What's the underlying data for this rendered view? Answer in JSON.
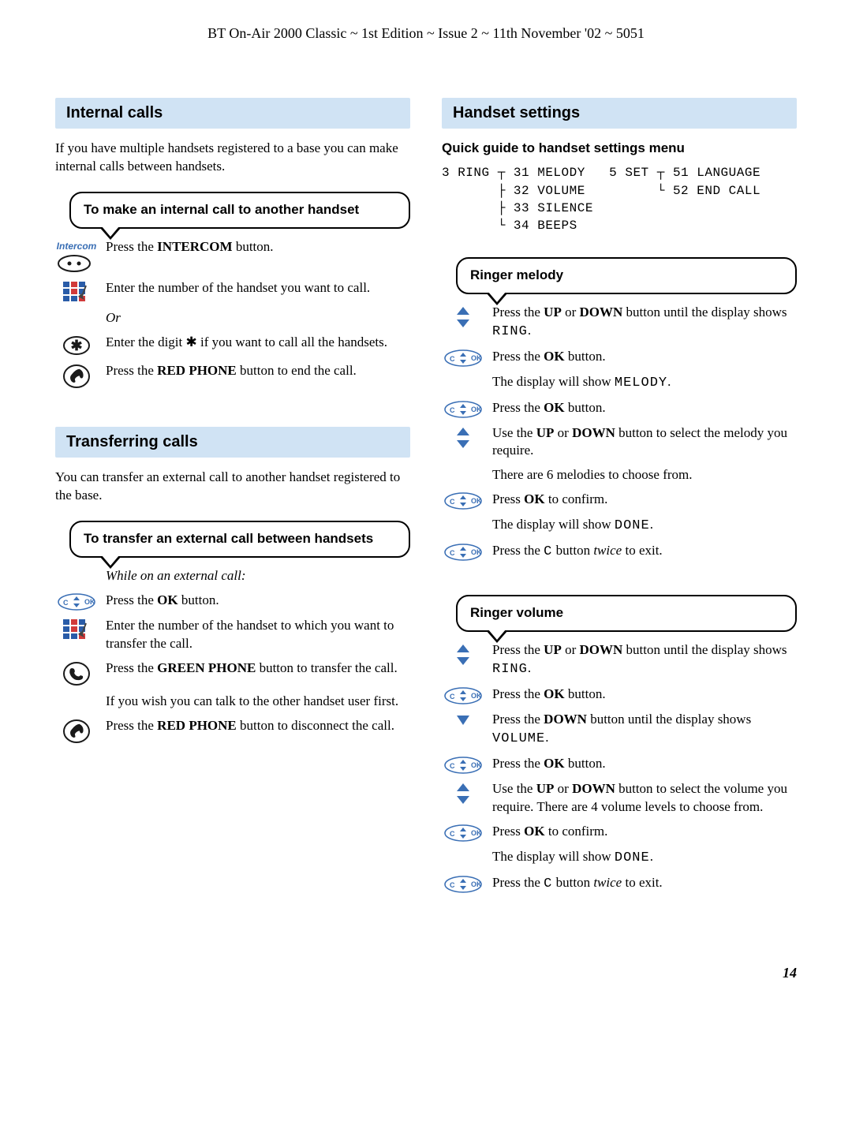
{
  "header": "BT On-Air 2000 Classic ~ 1st Edition ~ Issue 2 ~ 11th November '02 ~ 5051",
  "page_number": "14",
  "colors": {
    "section_bg": "#d0e3f4",
    "icon_blue": "#3a6fb5",
    "icon_dark": "#1a1a1a",
    "icon_green": "#2a8a3a",
    "keypad_a": "#2a5ca8",
    "keypad_b": "#d13a3a"
  },
  "left": {
    "internal_calls": {
      "title": "Internal calls",
      "intro": "If you have multiple handsets registered to a base you can make internal calls between handsets.",
      "box_title": "To make an internal call to another handset",
      "intercom_label": "Intercom",
      "steps": [
        {
          "icon": "intercom",
          "html": "Press the <b>INTERCOM</b> button."
        },
        {
          "icon": "keypad",
          "html": "Enter the number of the handset you want to call."
        },
        {
          "icon": "",
          "html": "<i>Or</i>"
        },
        {
          "icon": "star",
          "html": "Enter the digit ✱ if you want to call all the handsets."
        },
        {
          "icon": "redphone",
          "html": "Press the <b>RED PHONE</b> button to end the call."
        }
      ]
    },
    "transferring": {
      "title": "Transferring calls",
      "intro": "You can transfer an external call to another handset registered to the base.",
      "box_title": "To transfer an external call between handsets",
      "steps": [
        {
          "icon": "",
          "html": "<i>While on an external call:</i>"
        },
        {
          "icon": "ok",
          "html": "Press the <b>OK</b> button."
        },
        {
          "icon": "keypad",
          "html": "Enter the number of the handset to which you want to transfer the call."
        },
        {
          "icon": "greenphone",
          "html": "Press the <b>GREEN PHONE</b> button to transfer the call."
        },
        {
          "icon": "",
          "html": "If you wish you can talk to the other handset user first."
        },
        {
          "icon": "redphone",
          "html": "Press the <b>RED PHONE</b> button to disconnect the call."
        }
      ]
    }
  },
  "right": {
    "handset": {
      "title": "Handset settings",
      "quick_guide_title": "Quick guide to handset settings menu",
      "menu_tree": "3 RING ┬ 31 MELODY   5 SET ┬ 51 LANGUAGE\n       ├ 32 VOLUME         └ 52 END CALL\n       ├ 33 SILENCE\n       └ 34 BEEPS"
    },
    "ringer_melody": {
      "box_title": "Ringer melody",
      "steps": [
        {
          "icon": "updown",
          "html": "Press the <b>UP</b> or <b>DOWN</b> button until the display shows <span class=\"mono\">RING</span>."
        },
        {
          "icon": "ok",
          "html": "Press the <b>OK</b> button."
        },
        {
          "icon": "",
          "html": "The display will show <span class=\"mono\">MELODY</span>."
        },
        {
          "icon": "ok",
          "html": "Press the <b>OK</b> button."
        },
        {
          "icon": "updown",
          "html": "Use the <b>UP</b> or <b>DOWN</b> button to select the melody you require."
        },
        {
          "icon": "",
          "html": "There are 6 melodies to choose from."
        },
        {
          "icon": "ok",
          "html": "Press <b>OK</b> to confirm."
        },
        {
          "icon": "",
          "html": "The display will show <span class=\"mono\">DONE</span>."
        },
        {
          "icon": "ok",
          "html": "Press the <span class=\"mono\">C</span> button <i>twice</i> to exit."
        }
      ]
    },
    "ringer_volume": {
      "box_title": "Ringer volume",
      "steps": [
        {
          "icon": "updown",
          "html": "Press the <b>UP</b> or <b>DOWN</b> button until the display shows <span class=\"mono\">RING</span>."
        },
        {
          "icon": "ok",
          "html": "Press the <b>OK</b> button."
        },
        {
          "icon": "down",
          "html": "Press the <b>DOWN</b> button until the display shows <span class=\"mono\">VOLUME</span>."
        },
        {
          "icon": "ok",
          "html": "Press the <b>OK</b> button."
        },
        {
          "icon": "updown",
          "html": "Use the <b>UP</b> or <b>DOWN</b> button to select the volume you require. There are 4 volume levels to choose from."
        },
        {
          "icon": "ok",
          "html": "Press <b>OK</b> to confirm."
        },
        {
          "icon": "",
          "html": "The display will show <span class=\"mono\">DONE</span>."
        },
        {
          "icon": "ok",
          "html": "Press the <span class=\"mono\">C</span> button <i>twice</i> to exit."
        }
      ]
    }
  }
}
